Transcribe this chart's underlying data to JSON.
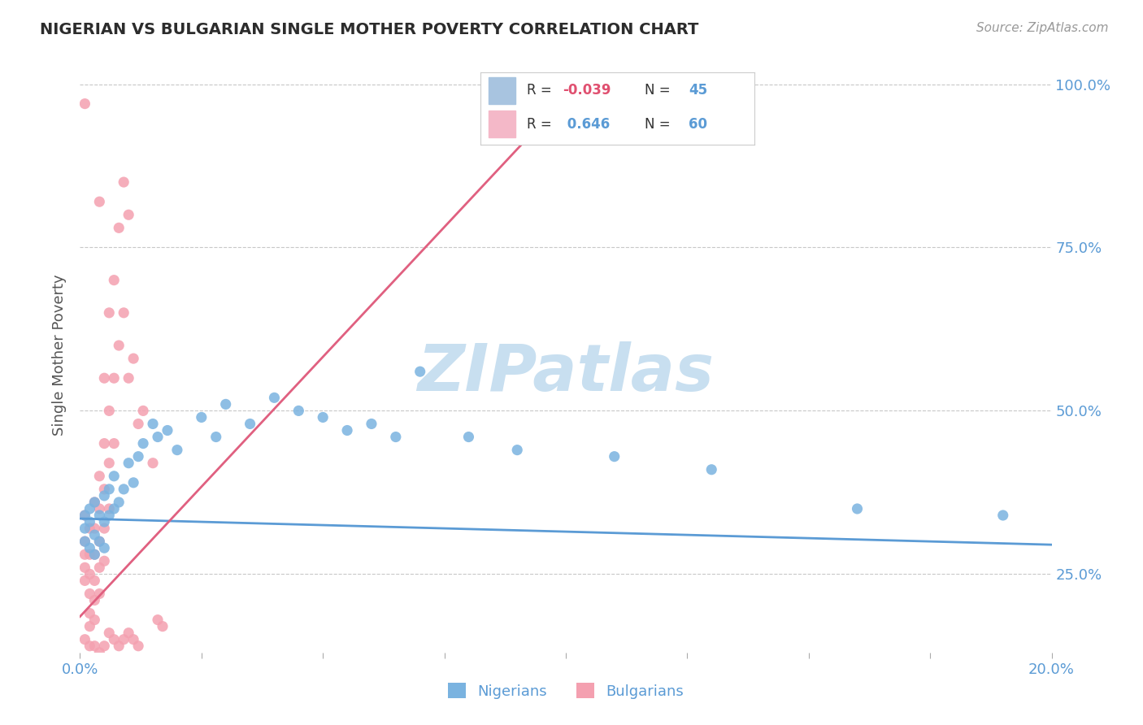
{
  "title": "NIGERIAN VS BULGARIAN SINGLE MOTHER POVERTY CORRELATION CHART",
  "source": "Source: ZipAtlas.com",
  "ylabel": "Single Mother Poverty",
  "y_ticks": [
    0.25,
    0.5,
    0.75,
    1.0
  ],
  "y_tick_labels_right": [
    "25.0%",
    "50.0%",
    "75.0%",
    "100.0%"
  ],
  "x_lim": [
    0.0,
    0.2
  ],
  "y_lim": [
    0.13,
    1.04
  ],
  "watermark": "ZIPatlas",
  "nigerian_points": [
    [
      0.001,
      0.34
    ],
    [
      0.001,
      0.32
    ],
    [
      0.001,
      0.3
    ],
    [
      0.002,
      0.35
    ],
    [
      0.002,
      0.33
    ],
    [
      0.002,
      0.29
    ],
    [
      0.003,
      0.36
    ],
    [
      0.003,
      0.31
    ],
    [
      0.003,
      0.28
    ],
    [
      0.004,
      0.34
    ],
    [
      0.004,
      0.3
    ],
    [
      0.005,
      0.37
    ],
    [
      0.005,
      0.33
    ],
    [
      0.005,
      0.29
    ],
    [
      0.006,
      0.38
    ],
    [
      0.006,
      0.34
    ],
    [
      0.007,
      0.4
    ],
    [
      0.007,
      0.35
    ],
    [
      0.008,
      0.36
    ],
    [
      0.009,
      0.38
    ],
    [
      0.01,
      0.42
    ],
    [
      0.011,
      0.39
    ],
    [
      0.012,
      0.43
    ],
    [
      0.013,
      0.45
    ],
    [
      0.015,
      0.48
    ],
    [
      0.016,
      0.46
    ],
    [
      0.018,
      0.47
    ],
    [
      0.02,
      0.44
    ],
    [
      0.025,
      0.49
    ],
    [
      0.028,
      0.46
    ],
    [
      0.03,
      0.51
    ],
    [
      0.035,
      0.48
    ],
    [
      0.04,
      0.52
    ],
    [
      0.045,
      0.5
    ],
    [
      0.05,
      0.49
    ],
    [
      0.055,
      0.47
    ],
    [
      0.06,
      0.48
    ],
    [
      0.065,
      0.46
    ],
    [
      0.07,
      0.56
    ],
    [
      0.08,
      0.46
    ],
    [
      0.09,
      0.44
    ],
    [
      0.11,
      0.43
    ],
    [
      0.13,
      0.41
    ],
    [
      0.16,
      0.35
    ],
    [
      0.19,
      0.34
    ]
  ],
  "bulgarian_points": [
    [
      0.001,
      0.97
    ],
    [
      0.001,
      0.34
    ],
    [
      0.001,
      0.3
    ],
    [
      0.001,
      0.28
    ],
    [
      0.001,
      0.26
    ],
    [
      0.001,
      0.24
    ],
    [
      0.002,
      0.32
    ],
    [
      0.002,
      0.28
    ],
    [
      0.002,
      0.25
    ],
    [
      0.002,
      0.22
    ],
    [
      0.002,
      0.19
    ],
    [
      0.002,
      0.17
    ],
    [
      0.003,
      0.36
    ],
    [
      0.003,
      0.32
    ],
    [
      0.003,
      0.28
    ],
    [
      0.003,
      0.24
    ],
    [
      0.003,
      0.21
    ],
    [
      0.003,
      0.18
    ],
    [
      0.004,
      0.82
    ],
    [
      0.004,
      0.4
    ],
    [
      0.004,
      0.35
    ],
    [
      0.004,
      0.3
    ],
    [
      0.004,
      0.26
    ],
    [
      0.004,
      0.22
    ],
    [
      0.005,
      0.55
    ],
    [
      0.005,
      0.45
    ],
    [
      0.005,
      0.38
    ],
    [
      0.005,
      0.32
    ],
    [
      0.005,
      0.27
    ],
    [
      0.006,
      0.65
    ],
    [
      0.006,
      0.5
    ],
    [
      0.006,
      0.42
    ],
    [
      0.006,
      0.35
    ],
    [
      0.007,
      0.7
    ],
    [
      0.007,
      0.55
    ],
    [
      0.007,
      0.45
    ],
    [
      0.008,
      0.78
    ],
    [
      0.008,
      0.6
    ],
    [
      0.009,
      0.85
    ],
    [
      0.009,
      0.65
    ],
    [
      0.01,
      0.8
    ],
    [
      0.01,
      0.55
    ],
    [
      0.011,
      0.58
    ],
    [
      0.012,
      0.48
    ],
    [
      0.013,
      0.5
    ],
    [
      0.015,
      0.42
    ],
    [
      0.016,
      0.18
    ],
    [
      0.017,
      0.17
    ],
    [
      0.001,
      0.15
    ],
    [
      0.002,
      0.14
    ],
    [
      0.003,
      0.14
    ],
    [
      0.004,
      0.13
    ],
    [
      0.005,
      0.14
    ],
    [
      0.006,
      0.16
    ],
    [
      0.007,
      0.15
    ],
    [
      0.008,
      0.14
    ],
    [
      0.009,
      0.15
    ],
    [
      0.01,
      0.16
    ],
    [
      0.011,
      0.15
    ],
    [
      0.012,
      0.14
    ]
  ],
  "nigerian_line": {
    "x0": 0.0,
    "y0": 0.335,
    "x1": 0.2,
    "y1": 0.295
  },
  "bulgarian_line": {
    "x0": 0.0,
    "y0": 0.185,
    "x1": 0.1,
    "y1": 0.98
  },
  "nigerian_dot_color": "#7ab3e0",
  "bulgarian_dot_color": "#f4a0b0",
  "nigerian_line_color": "#5b9bd5",
  "bulgarian_line_color": "#e06080",
  "background_color": "#ffffff",
  "grid_color": "#c8c8c8",
  "title_color": "#2c2c2c",
  "source_color": "#999999",
  "watermark_color": "#c8dff0",
  "legend_box_color": "#a8c4e0",
  "legend_box_color2": "#f4b8c8",
  "legend_R_neg_color": "#e05070",
  "legend_R_pos_color": "#5b9bd5",
  "legend_N_color": "#5b9bd5",
  "legend_label_color": "#333333"
}
